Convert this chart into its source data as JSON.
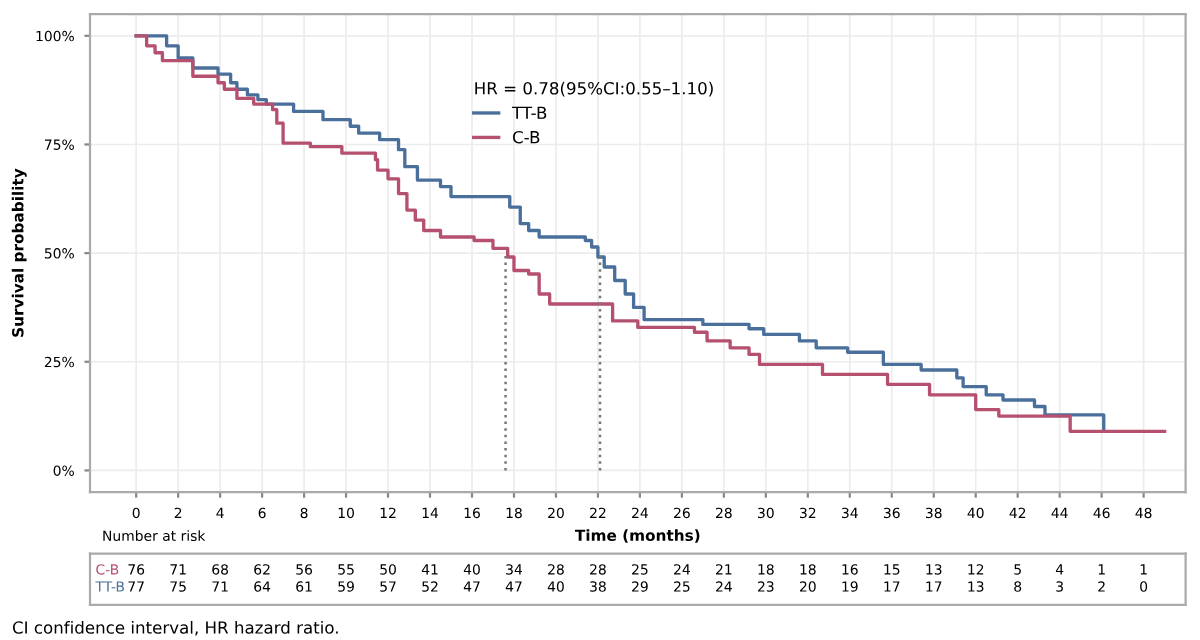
{
  "chart_data": {
    "type": "step",
    "xlabel": "Time (months)",
    "ylabel": "Survival probability",
    "legend_title": "HR = 0.78(95%CI:0.55–1.10)",
    "legend": "top",
    "grid": true,
    "marker": "none",
    "xlim": [
      -2.2,
      50
    ],
    "ylim": [
      -5,
      105
    ],
    "xticks": [
      0,
      2,
      4,
      6,
      8,
      10,
      12,
      14,
      16,
      18,
      20,
      22,
      24,
      26,
      28,
      30,
      32,
      34,
      36,
      38,
      40,
      42,
      44,
      46,
      48
    ],
    "yticks": [
      {
        "value": 0,
        "label": "0%"
      },
      {
        "value": 25,
        "label": "25%"
      },
      {
        "value": 50,
        "label": "50%"
      },
      {
        "value": 75,
        "label": "75%"
      },
      {
        "value": 100,
        "label": "100%"
      }
    ],
    "series": [
      {
        "name": "TT-B",
        "color": "#4a6f9a",
        "line_style": "solid",
        "x": [
          0,
          1.45,
          2.0,
          2.7,
          3.9,
          4.5,
          4.8,
          5.3,
          5.8,
          6.2,
          7.5,
          8.9,
          10.2,
          10.6,
          11.6,
          12.5,
          12.8,
          13.4,
          14.5,
          15.0,
          17.8,
          18.3,
          18.7,
          19.2,
          21.4,
          21.7,
          22.0,
          22.3,
          22.8,
          23.3,
          23.7,
          24.2,
          27.0,
          29.2,
          29.9,
          31.6,
          32.4,
          33.9,
          35.6,
          37.4,
          39.1,
          39.4,
          40.5,
          41.3,
          42.8,
          43.3,
          46.1
        ],
        "values": [
          100,
          97.7,
          94.9,
          92.6,
          91.2,
          89.2,
          87.7,
          86.4,
          85.3,
          84.3,
          82.6,
          80.7,
          79.2,
          77.6,
          76.1,
          73.8,
          69.9,
          66.8,
          65.3,
          63.0,
          60.6,
          56.8,
          55.2,
          53.7,
          52.9,
          51.4,
          49.1,
          46.8,
          43.7,
          40.6,
          37.5,
          34.7,
          33.6,
          32.6,
          31.3,
          29.8,
          28.2,
          27.2,
          24.4,
          23.1,
          21.3,
          19.3,
          17.4,
          16.2,
          14.7,
          12.8,
          9.7
        ]
      },
      {
        "name": "C-B",
        "color": "#b5506e",
        "line_style": "solid",
        "x": [
          0,
          0.5,
          0.9,
          1.25,
          2.7,
          3.9,
          4.2,
          4.8,
          5.6,
          6.5,
          6.7,
          7.0,
          8.3,
          9.8,
          11.4,
          11.5,
          12.0,
          12.5,
          12.9,
          13.3,
          13.7,
          14.5,
          16.1,
          17.0,
          17.7,
          18.0,
          18.7,
          19.2,
          19.7,
          22.7,
          23.9,
          26.6,
          27.2,
          28.3,
          29.2,
          29.7,
          32.7,
          35.8,
          37.8,
          40.0,
          41.1,
          44.5,
          49.0
        ],
        "values": [
          100,
          97.7,
          96.1,
          94.3,
          90.7,
          89.2,
          87.7,
          85.6,
          84.3,
          83.0,
          79.9,
          75.3,
          74.5,
          73.0,
          71.5,
          69.1,
          67.1,
          63.7,
          59.9,
          57.6,
          55.2,
          53.7,
          52.9,
          51.1,
          49.1,
          46.0,
          45.2,
          40.6,
          38.3,
          34.4,
          32.9,
          31.8,
          29.8,
          28.2,
          26.7,
          24.4,
          22.1,
          19.8,
          17.4,
          14.0,
          12.5,
          9.0,
          9.0
        ]
      },
      {
        "type": "line",
        "color": "#777777",
        "line_style": "dotted",
        "x": [
          17.6,
          17.6
        ],
        "values": [
          0,
          50
        ]
      },
      {
        "type": "line",
        "color": "#777777",
        "line_style": "dotted",
        "x": [
          22.1,
          22.1
        ],
        "values": [
          0,
          50
        ]
      }
    ],
    "annotations": [
      "Number at risk",
      "C-B 76 71 68 62 56 55 50 41 40 34 28 28 25 24 21 18 18 16 15 13 12 5 4 1 1",
      "TT-B 77 75 71 64 61 59 57 52 47 47 40 38 29 25 24 23 20 19 17 17 13 8 3 2 0",
      "CI confidence interval, HR hazard ratio."
    ]
  }
}
